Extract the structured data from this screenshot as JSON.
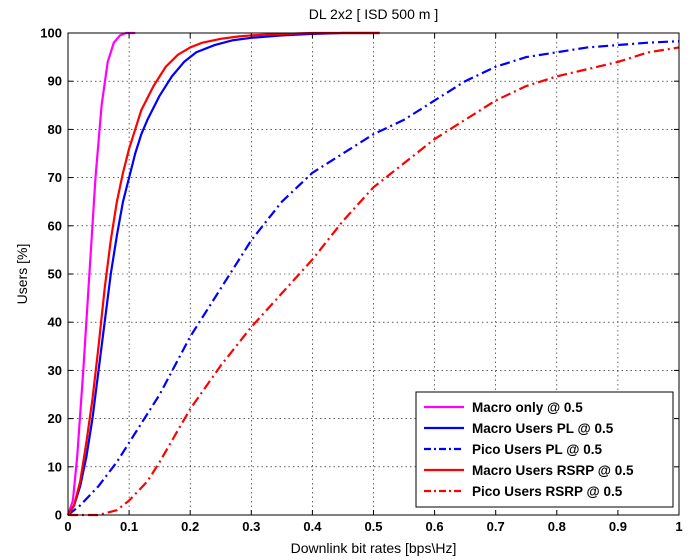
{
  "chart_data": {
    "type": "line",
    "title": "DL 2x2 [ ISD 500 m ]",
    "xlabel": "Downlink bit rates [bps\\Hz]",
    "ylabel": "Users [%]",
    "xlim": [
      0,
      1
    ],
    "ylim": [
      0,
      100
    ],
    "xticks": [
      "0",
      "0.1",
      "0.2",
      "0.3",
      "0.4",
      "0.5",
      "0.6",
      "0.7",
      "0.8",
      "0.9",
      "1"
    ],
    "yticks": [
      "0",
      "10",
      "20",
      "30",
      "40",
      "50",
      "60",
      "70",
      "80",
      "90",
      "100"
    ],
    "grid": true,
    "legend_position": "bottom-right",
    "series": [
      {
        "name": "Macro only @ 0.5",
        "color": "#ff00ff",
        "style": "solid",
        "x": [
          0.0,
          0.008,
          0.015,
          0.025,
          0.035,
          0.045,
          0.055,
          0.065,
          0.075,
          0.085,
          0.095,
          0.11
        ],
        "y": [
          0,
          3,
          12,
          30,
          50,
          70,
          85,
          94,
          98,
          99.5,
          100,
          100
        ]
      },
      {
        "name": "Macro Users PL @ 0.5",
        "color": "#0000ff",
        "style": "solid",
        "x": [
          0.0,
          0.01,
          0.02,
          0.03,
          0.04,
          0.05,
          0.06,
          0.07,
          0.08,
          0.09,
          0.1,
          0.11,
          0.12,
          0.13,
          0.15,
          0.17,
          0.19,
          0.21,
          0.24,
          0.27,
          0.3,
          0.35,
          0.4,
          0.45,
          0.51
        ],
        "y": [
          0,
          2,
          6,
          12,
          20,
          30,
          40,
          50,
          58,
          65,
          70,
          75,
          79,
          82,
          87,
          91,
          94,
          96,
          97.5,
          98.5,
          99,
          99.5,
          99.8,
          100,
          100
        ]
      },
      {
        "name": "Pico Users PL @ 0.5",
        "color": "#0000ff",
        "style": "dashdot",
        "x": [
          0.0,
          0.02,
          0.05,
          0.08,
          0.1,
          0.15,
          0.2,
          0.25,
          0.3,
          0.35,
          0.4,
          0.45,
          0.5,
          0.55,
          0.6,
          0.65,
          0.7,
          0.75,
          0.8,
          0.85,
          0.9,
          0.95,
          1.0
        ],
        "y": [
          0,
          2,
          6,
          11,
          15,
          25,
          37,
          47,
          57,
          65,
          71,
          75,
          79,
          82,
          86,
          90,
          93,
          95,
          96,
          97,
          97.5,
          98,
          98.3
        ]
      },
      {
        "name": "Macro Users RSRP @ 0.5",
        "color": "#ff0000",
        "style": "solid",
        "x": [
          0.0,
          0.01,
          0.02,
          0.03,
          0.04,
          0.05,
          0.06,
          0.07,
          0.08,
          0.09,
          0.1,
          0.11,
          0.12,
          0.14,
          0.16,
          0.18,
          0.2,
          0.22,
          0.25,
          0.28,
          0.3,
          0.35,
          0.4,
          0.45,
          0.51
        ],
        "y": [
          0,
          2,
          7,
          15,
          24,
          35,
          47,
          57,
          65,
          71,
          76,
          80,
          84,
          89,
          93,
          95.5,
          97,
          98,
          98.8,
          99.3,
          99.5,
          99.8,
          100,
          100,
          100
        ]
      },
      {
        "name": "Pico Users RSRP @ 0.5",
        "color": "#ff0000",
        "style": "dashdot",
        "x": [
          0.0,
          0.05,
          0.08,
          0.1,
          0.13,
          0.15,
          0.2,
          0.25,
          0.3,
          0.35,
          0.4,
          0.45,
          0.5,
          0.55,
          0.6,
          0.65,
          0.7,
          0.75,
          0.8,
          0.85,
          0.9,
          0.95,
          1.0
        ],
        "y": [
          0,
          0,
          1,
          3,
          7,
          11,
          22,
          31,
          39,
          46,
          53,
          61,
          68,
          73,
          78,
          82,
          86,
          89,
          91,
          92.5,
          94,
          96,
          97
        ]
      }
    ]
  }
}
